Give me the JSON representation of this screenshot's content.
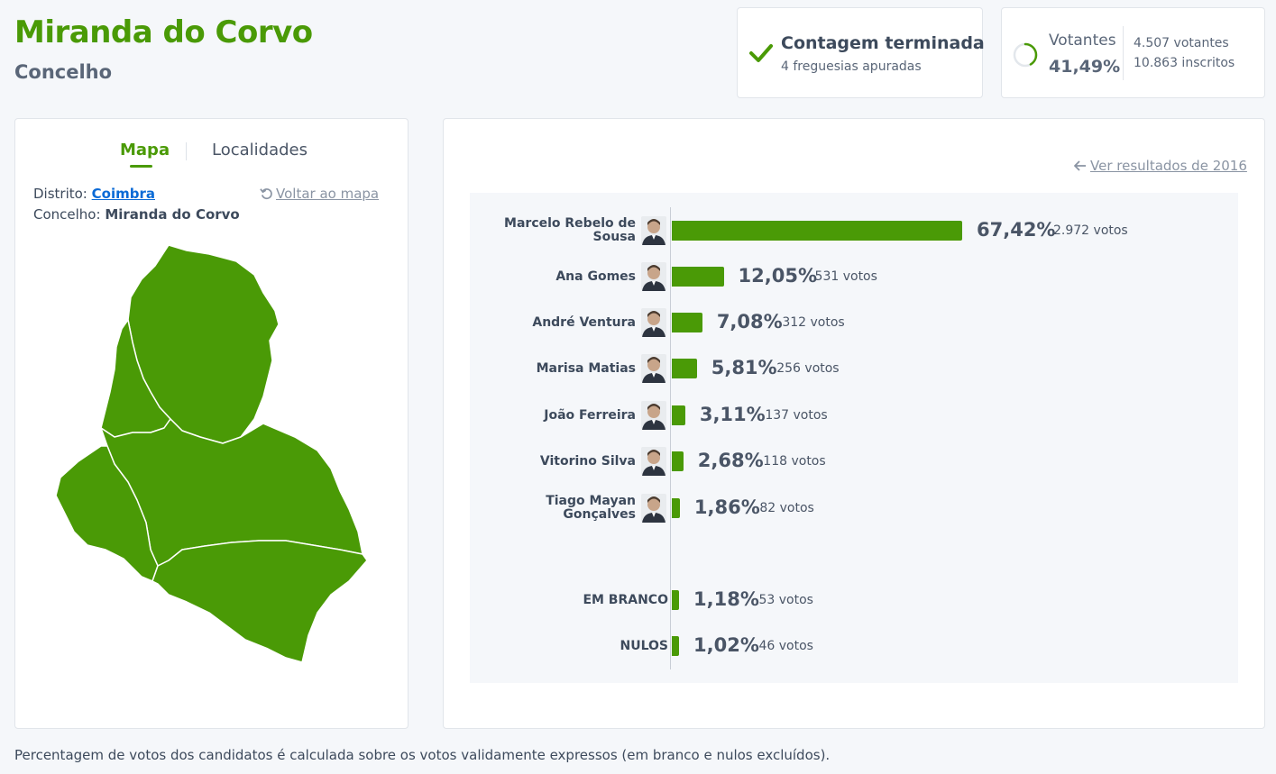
{
  "header": {
    "title": "Miranda do Corvo",
    "subtitle": "Concelho"
  },
  "status": {
    "title": "Contagem terminada",
    "subtitle": "4 freguesias apuradas"
  },
  "voters": {
    "label": "Votantes",
    "percent": "41,49%",
    "turnout_fraction": 0.4149,
    "voters_count": "4.507 votantes",
    "registered": "10.863 inscritos"
  },
  "map_panel": {
    "tab_map": "Mapa",
    "tab_localities": "Localidades",
    "district_label": "Distrito:",
    "district_value": "Coimbra",
    "municipality_label": "Concelho:",
    "municipality_value": "Miranda do Corvo",
    "back_link": "Voltar ao mapa",
    "map_color": "#4a9a06"
  },
  "results": {
    "prev_link": "Ver resultados de 2016",
    "accent_color": "#4a9a06",
    "candidates": [
      {
        "name_line1": "Marcelo Rebelo de",
        "name_line2": "Sousa",
        "percent_label": "67,42%",
        "percent": 67.42,
        "votes": "2.972 votos",
        "avatar": "portrait-icon"
      },
      {
        "name_line1": "Ana Gomes",
        "name_line2": "",
        "percent_label": "12,05%",
        "percent": 12.05,
        "votes": "531 votos",
        "avatar": "portrait-icon"
      },
      {
        "name_line1": "André Ventura",
        "name_line2": "",
        "percent_label": "7,08%",
        "percent": 7.08,
        "votes": "312 votos",
        "avatar": "portrait-icon"
      },
      {
        "name_line1": "Marisa Matias",
        "name_line2": "",
        "percent_label": "5,81%",
        "percent": 5.81,
        "votes": "256 votos",
        "avatar": "portrait-icon"
      },
      {
        "name_line1": "João Ferreira",
        "name_line2": "",
        "percent_label": "3,11%",
        "percent": 3.11,
        "votes": "137 votos",
        "avatar": "portrait-icon"
      },
      {
        "name_line1": "Vitorino Silva",
        "name_line2": "",
        "percent_label": "2,68%",
        "percent": 2.68,
        "votes": "118 votos",
        "avatar": "portrait-icon"
      },
      {
        "name_line1": "Tiago Mayan",
        "name_line2": "Gonçalves",
        "percent_label": "1,86%",
        "percent": 1.86,
        "votes": "82 votos",
        "avatar": "portrait-icon"
      }
    ],
    "others": [
      {
        "name": "EM BRANCO",
        "percent_label": "1,18%",
        "percent": 1.18,
        "votes": "53 votos"
      },
      {
        "name": "NULOS",
        "percent_label": "1,02%",
        "percent": 1.02,
        "votes": "46 votos"
      }
    ]
  },
  "footnote": "Percentagem de votos dos candidatos é calculada sobre os votos validamente expressos (em branco e nulos excluídos)."
}
